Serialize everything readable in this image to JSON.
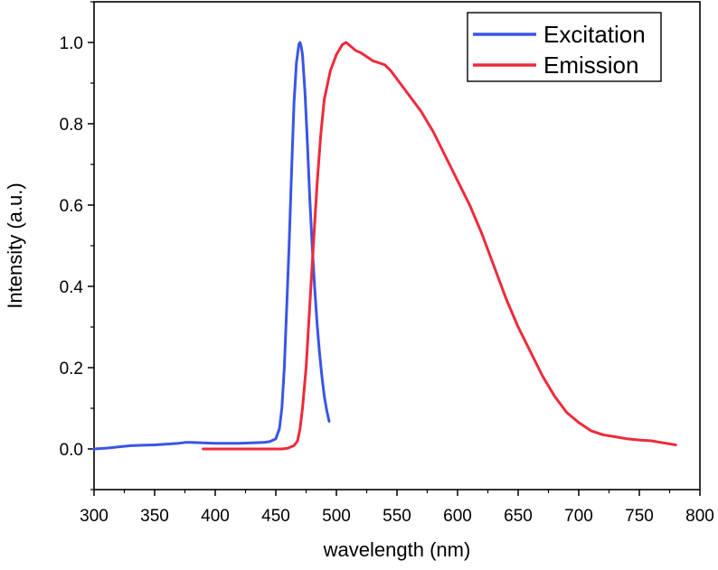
{
  "chart_data": {
    "type": "line",
    "title": "",
    "xlabel": "wavelength (nm)",
    "ylabel": "Intensity (a.u.)",
    "xlim": [
      300,
      800
    ],
    "ylim": [
      -0.1,
      1.1
    ],
    "xticks": [
      300,
      350,
      400,
      450,
      500,
      550,
      600,
      650,
      700,
      750,
      800
    ],
    "yticks": [
      0.0,
      0.2,
      0.4,
      0.6,
      0.8,
      1.0
    ],
    "ytick_labels": [
      "0.0",
      "0.2",
      "0.4",
      "0.6",
      "0.8",
      "1.0"
    ],
    "grid": false,
    "legend_position": "top-right",
    "series": [
      {
        "name": "Excitation",
        "color": "#3a55e6",
        "points": [
          [
            300,
            0.0
          ],
          [
            310,
            0.002
          ],
          [
            320,
            0.005
          ],
          [
            330,
            0.008
          ],
          [
            340,
            0.009
          ],
          [
            350,
            0.01
          ],
          [
            360,
            0.012
          ],
          [
            370,
            0.014
          ],
          [
            375,
            0.016
          ],
          [
            380,
            0.016
          ],
          [
            390,
            0.015
          ],
          [
            400,
            0.014
          ],
          [
            410,
            0.014
          ],
          [
            420,
            0.014
          ],
          [
            430,
            0.015
          ],
          [
            440,
            0.016
          ],
          [
            445,
            0.018
          ],
          [
            450,
            0.025
          ],
          [
            453,
            0.05
          ],
          [
            455,
            0.1
          ],
          [
            457,
            0.2
          ],
          [
            459,
            0.35
          ],
          [
            461,
            0.5
          ],
          [
            463,
            0.68
          ],
          [
            465,
            0.85
          ],
          [
            467,
            0.95
          ],
          [
            469,
            0.995
          ],
          [
            470,
            1.0
          ],
          [
            471,
            0.99
          ],
          [
            472,
            0.97
          ],
          [
            474,
            0.88
          ],
          [
            476,
            0.76
          ],
          [
            478,
            0.62
          ],
          [
            480,
            0.5
          ],
          [
            482,
            0.4
          ],
          [
            484,
            0.31
          ],
          [
            486,
            0.24
          ],
          [
            488,
            0.18
          ],
          [
            490,
            0.13
          ],
          [
            492,
            0.095
          ],
          [
            494,
            0.068
          ]
        ]
      },
      {
        "name": "Emission",
        "color": "#ee2a3c",
        "points": [
          [
            390,
            0.0
          ],
          [
            400,
            0.0
          ],
          [
            420,
            0.0
          ],
          [
            440,
            0.0
          ],
          [
            455,
            0.0
          ],
          [
            460,
            0.002
          ],
          [
            465,
            0.008
          ],
          [
            468,
            0.02
          ],
          [
            470,
            0.05
          ],
          [
            472,
            0.1
          ],
          [
            475,
            0.2
          ],
          [
            478,
            0.35
          ],
          [
            481,
            0.5
          ],
          [
            484,
            0.65
          ],
          [
            487,
            0.77
          ],
          [
            490,
            0.86
          ],
          [
            495,
            0.93
          ],
          [
            500,
            0.97
          ],
          [
            505,
            0.995
          ],
          [
            508,
            1.0
          ],
          [
            512,
            0.99
          ],
          [
            516,
            0.98
          ],
          [
            520,
            0.975
          ],
          [
            525,
            0.965
          ],
          [
            530,
            0.955
          ],
          [
            535,
            0.95
          ],
          [
            540,
            0.945
          ],
          [
            545,
            0.93
          ],
          [
            550,
            0.91
          ],
          [
            560,
            0.87
          ],
          [
            570,
            0.83
          ],
          [
            580,
            0.78
          ],
          [
            590,
            0.72
          ],
          [
            600,
            0.66
          ],
          [
            610,
            0.6
          ],
          [
            620,
            0.53
          ],
          [
            630,
            0.45
          ],
          [
            640,
            0.37
          ],
          [
            650,
            0.3
          ],
          [
            660,
            0.24
          ],
          [
            670,
            0.18
          ],
          [
            680,
            0.13
          ],
          [
            690,
            0.09
          ],
          [
            700,
            0.065
          ],
          [
            710,
            0.045
          ],
          [
            720,
            0.035
          ],
          [
            730,
            0.03
          ],
          [
            740,
            0.025
          ],
          [
            750,
            0.022
          ],
          [
            760,
            0.02
          ],
          [
            770,
            0.015
          ],
          [
            780,
            0.01
          ]
        ]
      }
    ]
  }
}
